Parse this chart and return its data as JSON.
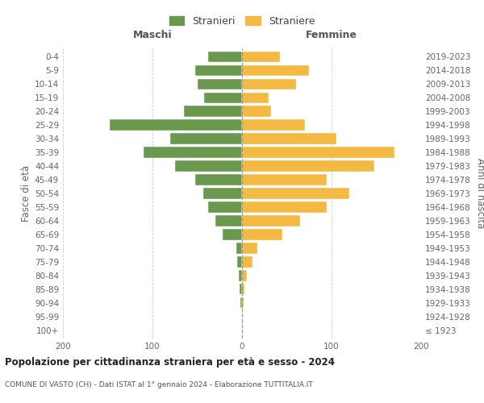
{
  "age_groups": [
    "100+",
    "95-99",
    "90-94",
    "85-89",
    "80-84",
    "75-79",
    "70-74",
    "65-69",
    "60-64",
    "55-59",
    "50-54",
    "45-49",
    "40-44",
    "35-39",
    "30-34",
    "25-29",
    "20-24",
    "15-19",
    "10-14",
    "5-9",
    "0-4"
  ],
  "birth_years": [
    "≤ 1923",
    "1924-1928",
    "1929-1933",
    "1934-1938",
    "1939-1943",
    "1944-1948",
    "1949-1953",
    "1954-1958",
    "1959-1963",
    "1964-1968",
    "1969-1973",
    "1974-1978",
    "1979-1983",
    "1984-1988",
    "1989-1993",
    "1994-1998",
    "1999-2003",
    "2004-2008",
    "2009-2013",
    "2014-2018",
    "2019-2023"
  ],
  "maschi": [
    0,
    0,
    2,
    3,
    4,
    5,
    6,
    22,
    30,
    38,
    43,
    52,
    75,
    110,
    80,
    148,
    65,
    42,
    50,
    52,
    38
  ],
  "femmine": [
    0,
    0,
    2,
    3,
    5,
    12,
    17,
    45,
    65,
    95,
    120,
    95,
    148,
    170,
    105,
    70,
    32,
    30,
    60,
    75,
    42
  ],
  "color_maschi": "#6a994e",
  "color_femmine": "#f4b942",
  "title_main": "Popolazione per cittadinanza straniera per età e sesso - 2024",
  "title_sub": "COMUNE DI VASTO (CH) - Dati ISTAT al 1° gennaio 2024 - Elaborazione TUTTITALIA.IT",
  "legend_maschi": "Stranieri",
  "legend_femmine": "Straniere",
  "label_left": "Maschi",
  "label_right": "Femmine",
  "ylabel_left": "Fasce di età",
  "ylabel_right": "Anni di nascita",
  "xlim": 200,
  "background_color": "#ffffff",
  "grid_color": "#cccccc"
}
